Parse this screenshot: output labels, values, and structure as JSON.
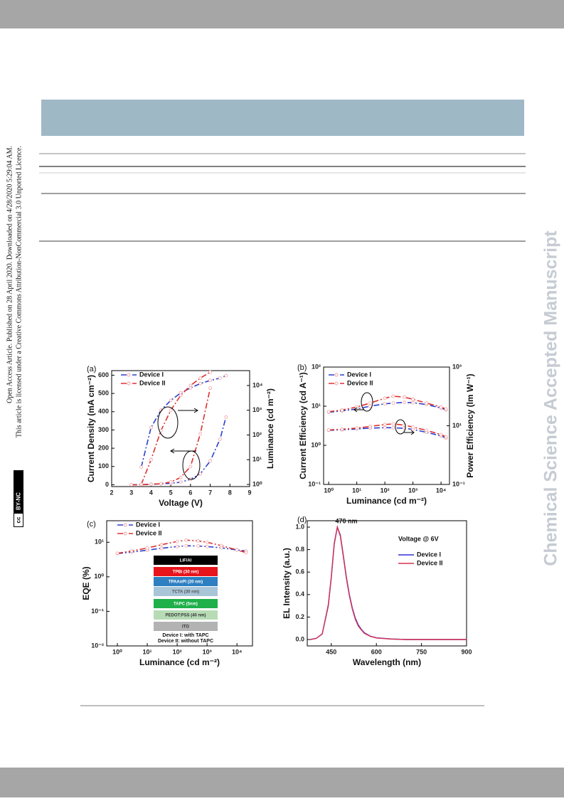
{
  "side_text": [
    "Open Access Article. Published on 28 April 2020. Downloaded on 4/28/2020 5:29:04 AM.",
    "This article is licensed under a Creative Commons Attribution-NonCommercial 3.0 Unported Licence."
  ],
  "license_badge": {
    "icon": "cc",
    "text": "BY-NC"
  },
  "watermark": "Chemical Science Accepted Manuscript",
  "chart_data": [
    {
      "type": "line",
      "panel_label": "(a)",
      "x_label": "Voltage (V)",
      "y_label": "Current Density (mA cm⁻²)",
      "y2_label": "Luminance (cd m⁻²)",
      "marker": "circle",
      "dash": true,
      "x": [
        3,
        3.5,
        4,
        4.5,
        5,
        5.5,
        6,
        6.5,
        7,
        7.5,
        7.8
      ],
      "xlim": [
        2,
        9
      ],
      "xticks": [
        2,
        3,
        4,
        5,
        6,
        7,
        8,
        9
      ],
      "ylim": [
        -10,
        625
      ],
      "yticks": [
        0,
        100,
        200,
        300,
        400,
        500,
        600
      ],
      "y2_log": true,
      "y2lim": [
        0.82,
        40000
      ],
      "y2ticks": [
        {
          "value": 1,
          "label": "10⁰"
        },
        {
          "value": 10,
          "label": "10¹"
        },
        {
          "value": 100,
          "label": "10²"
        },
        {
          "value": 1000,
          "label": "10³"
        },
        {
          "value": 10000,
          "label": "10⁴"
        }
      ],
      "series": [
        {
          "name": "Device I",
          "color": "#2a3fd0",
          "values": [
            0,
            1,
            3,
            5,
            8,
            14,
            30,
            60,
            130,
            250,
            370
          ]
        },
        {
          "name": "Device II",
          "color": "#e03030",
          "values": [
            0,
            0,
            2,
            6,
            15,
            40,
            100,
            280,
            530,
            null,
            null
          ]
        },
        {
          "color": "#2a3fd0",
          "axis": "y2",
          "values": [
            null,
            5,
            200,
            1000,
            2500,
            5000,
            8000,
            12000,
            16000,
            20000,
            25000
          ]
        },
        {
          "color": "#e03030",
          "axis": "y2",
          "values": [
            null,
            1,
            10,
            150,
            1000,
            4000,
            10000,
            20000,
            35000,
            null,
            null
          ]
        }
      ]
    },
    {
      "type": "line",
      "panel_label": "(b)",
      "x_label": "Luminance (cd m⁻²)",
      "y_label": "Current Efficiency (cd A⁻¹)",
      "y2_label": "Power Efficiency (lm W⁻¹)",
      "marker": "circle",
      "dash": true,
      "x": [
        1,
        3,
        10,
        30,
        100,
        200,
        500,
        1000,
        3000,
        10000,
        15000
      ],
      "x_log": true,
      "xlim": [
        0.66,
        20000
      ],
      "xticks": [
        {
          "value": 1,
          "label": "10⁰"
        },
        {
          "value": 10,
          "label": "10¹"
        },
        {
          "value": 100,
          "label": "10²"
        },
        {
          "value": 1000,
          "label": "10³"
        },
        {
          "value": 10000,
          "label": "10⁴"
        }
      ],
      "y_log": true,
      "ylim": [
        0.1,
        100
      ],
      "yticks": [
        {
          "value": 0.1,
          "label": "10⁻¹"
        },
        {
          "value": 1,
          "label": "10⁰"
        },
        {
          "value": 10,
          "label": "10¹"
        },
        {
          "value": 100,
          "label": "10²"
        }
      ],
      "y2_log": true,
      "y2lim": [
        0.1,
        1000
      ],
      "y2ticks": [
        {
          "value": 0.1,
          "label": "10⁻¹"
        },
        {
          "value": 10,
          "label": "10¹"
        },
        {
          "value": 1000,
          "label": "10³"
        }
      ],
      "series": [
        {
          "name": "Device I",
          "color": "#2a3fd0",
          "values": [
            7,
            7.6,
            8.5,
            10,
            11.5,
            12,
            12.5,
            12.3,
            11,
            9,
            8
          ]
        },
        {
          "name": "Device II",
          "color": "#e03030",
          "values": [
            7.2,
            8,
            9.5,
            12,
            16,
            18,
            17,
            15,
            12,
            9.5,
            8.5
          ]
        },
        {
          "color": "#2a3fd0",
          "axis": "y2",
          "values": [
            7,
            7.3,
            7.8,
            8.3,
            8.6,
            8.5,
            8.2,
            7.5,
            6,
            4.5,
            3.8
          ]
        },
        {
          "color": "#e03030",
          "axis": "y2",
          "values": [
            7.2,
            7.6,
            8.3,
            9.5,
            11,
            11.5,
            10.5,
            9,
            7,
            5,
            4.2
          ]
        }
      ]
    },
    {
      "type": "line",
      "panel_label": "(c)",
      "x_label": "Luminance (cd m⁻²)",
      "y_label": "EQE (%)",
      "marker": "circle",
      "dash": true,
      "x": [
        1,
        3,
        10,
        30,
        100,
        200,
        500,
        1000,
        3000,
        10000,
        20000
      ],
      "x_log": true,
      "xlim": [
        0.44,
        33000
      ],
      "xticks": [
        {
          "value": 1,
          "label": "10⁰"
        },
        {
          "value": 10,
          "label": "10¹"
        },
        {
          "value": 100,
          "label": "10²"
        },
        {
          "value": 1000,
          "label": "10³"
        },
        {
          "value": 10000,
          "label": "10⁴"
        }
      ],
      "y_log": true,
      "ylim": [
        0.01,
        42
      ],
      "yticks": [
        {
          "value": 0.01,
          "label": "10⁻²"
        },
        {
          "value": 0.1,
          "label": "10⁻¹"
        },
        {
          "value": 1,
          "label": "10⁰"
        },
        {
          "value": 10,
          "label": "10¹"
        }
      ],
      "series": [
        {
          "name": "Device I",
          "color": "#2a3fd0",
          "values": [
            4.7,
            5.2,
            5.9,
            6.7,
            7.5,
            7.9,
            7.8,
            7.5,
            6.9,
            6,
            5.6
          ]
        },
        {
          "name": "Device II",
          "color": "#e03030",
          "values": [
            4.8,
            5.6,
            6.8,
            8.5,
            10.5,
            11.5,
            11,
            10,
            8,
            6,
            5
          ]
        }
      ],
      "inset": {
        "layers": [
          {
            "text": "LiF/Al",
            "color": "#000000",
            "text_color": "#ffffff"
          },
          {
            "text": "TPBi (30 nm)",
            "color": "#e8141b",
            "text_color": "#ffffff"
          },
          {
            "text": "TPAAnPI (20 nm)",
            "color": "#2d7fc1",
            "text_color": "#ffffff"
          },
          {
            "text": "TCTA (30 nm)",
            "color": "#a9c6d9",
            "text_color": "#555555"
          },
          {
            "text": "TAPC (5nm)",
            "color": "#1fb04a",
            "text_color": "#ffffff"
          },
          {
            "text": "PEDOT:PSS (40 nm)",
            "color": "#b7dcb5",
            "text_color": "#333333"
          },
          {
            "text": "ITO",
            "color": "#b3b3b3",
            "text_color": "#333333"
          }
        ],
        "notes": [
          "Device I:  with TAPC",
          "Device II: without TAPC"
        ]
      }
    },
    {
      "type": "line",
      "panel_label": "(d)",
      "x_label": "Wavelength (nm)",
      "y_label": "EL Intensity (a.u.)",
      "annotations": [
        "470 nm",
        "Voltage @ 6V"
      ],
      "x": [
        380,
        400,
        420,
        440,
        450,
        460,
        470,
        480,
        490,
        500,
        510,
        520,
        530,
        540,
        550,
        560,
        580,
        600,
        650,
        700,
        800,
        900
      ],
      "xlim": [
        370,
        900
      ],
      "xticks": [
        450,
        600,
        750,
        900
      ],
      "ylim": [
        -0.057,
        1.057
      ],
      "yticks": [
        {
          "value": 0,
          "label": "0.0"
        },
        0.2,
        0.4,
        0.6,
        0.8,
        {
          "value": 1,
          "label": "1.0"
        }
      ],
      "series": [
        {
          "name": "Device I",
          "color": "#3030d8",
          "values": [
            0,
            0.01,
            0.05,
            0.3,
            0.55,
            0.85,
            1,
            0.93,
            0.75,
            0.56,
            0.4,
            0.28,
            0.19,
            0.13,
            0.09,
            0.06,
            0.03,
            0.015,
            0.005,
            0,
            0,
            0
          ]
        },
        {
          "name": "Device II",
          "color": "#d83050",
          "values": [
            0,
            0.01,
            0.05,
            0.31,
            0.56,
            0.86,
            1,
            0.92,
            0.74,
            0.55,
            0.39,
            0.27,
            0.18,
            0.12,
            0.085,
            0.055,
            0.028,
            0.014,
            0.004,
            0,
            0,
            0
          ]
        }
      ]
    }
  ]
}
